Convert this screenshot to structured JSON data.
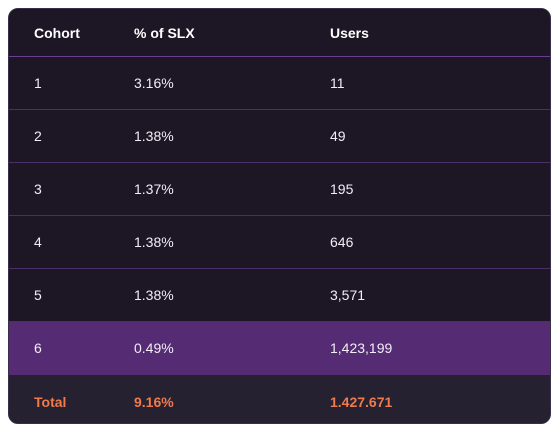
{
  "columns": {
    "cohort": "Cohort",
    "pct": "% of SLX",
    "users": "Users"
  },
  "rows": [
    {
      "cohort": "1",
      "pct": "3.16%",
      "users": "11"
    },
    {
      "cohort": "2",
      "pct": "1.38%",
      "users": "49"
    },
    {
      "cohort": "3",
      "pct": "1.37%",
      "users": "195"
    },
    {
      "cohort": "4",
      "pct": "1.38%",
      "users": "646"
    },
    {
      "cohort": "5",
      "pct": "1.38%",
      "users": "3,571"
    },
    {
      "cohort": "6",
      "pct": "0.49%",
      "users": "1,423,199"
    }
  ],
  "total": {
    "label": "Total",
    "pct": "9.16%",
    "users": "1.427.671"
  },
  "colors": {
    "background": "#1c1625",
    "highlight_row": "#552c74",
    "total_row": "#262131",
    "total_text": "#f07a4a",
    "divider": "#4b2f6b"
  }
}
